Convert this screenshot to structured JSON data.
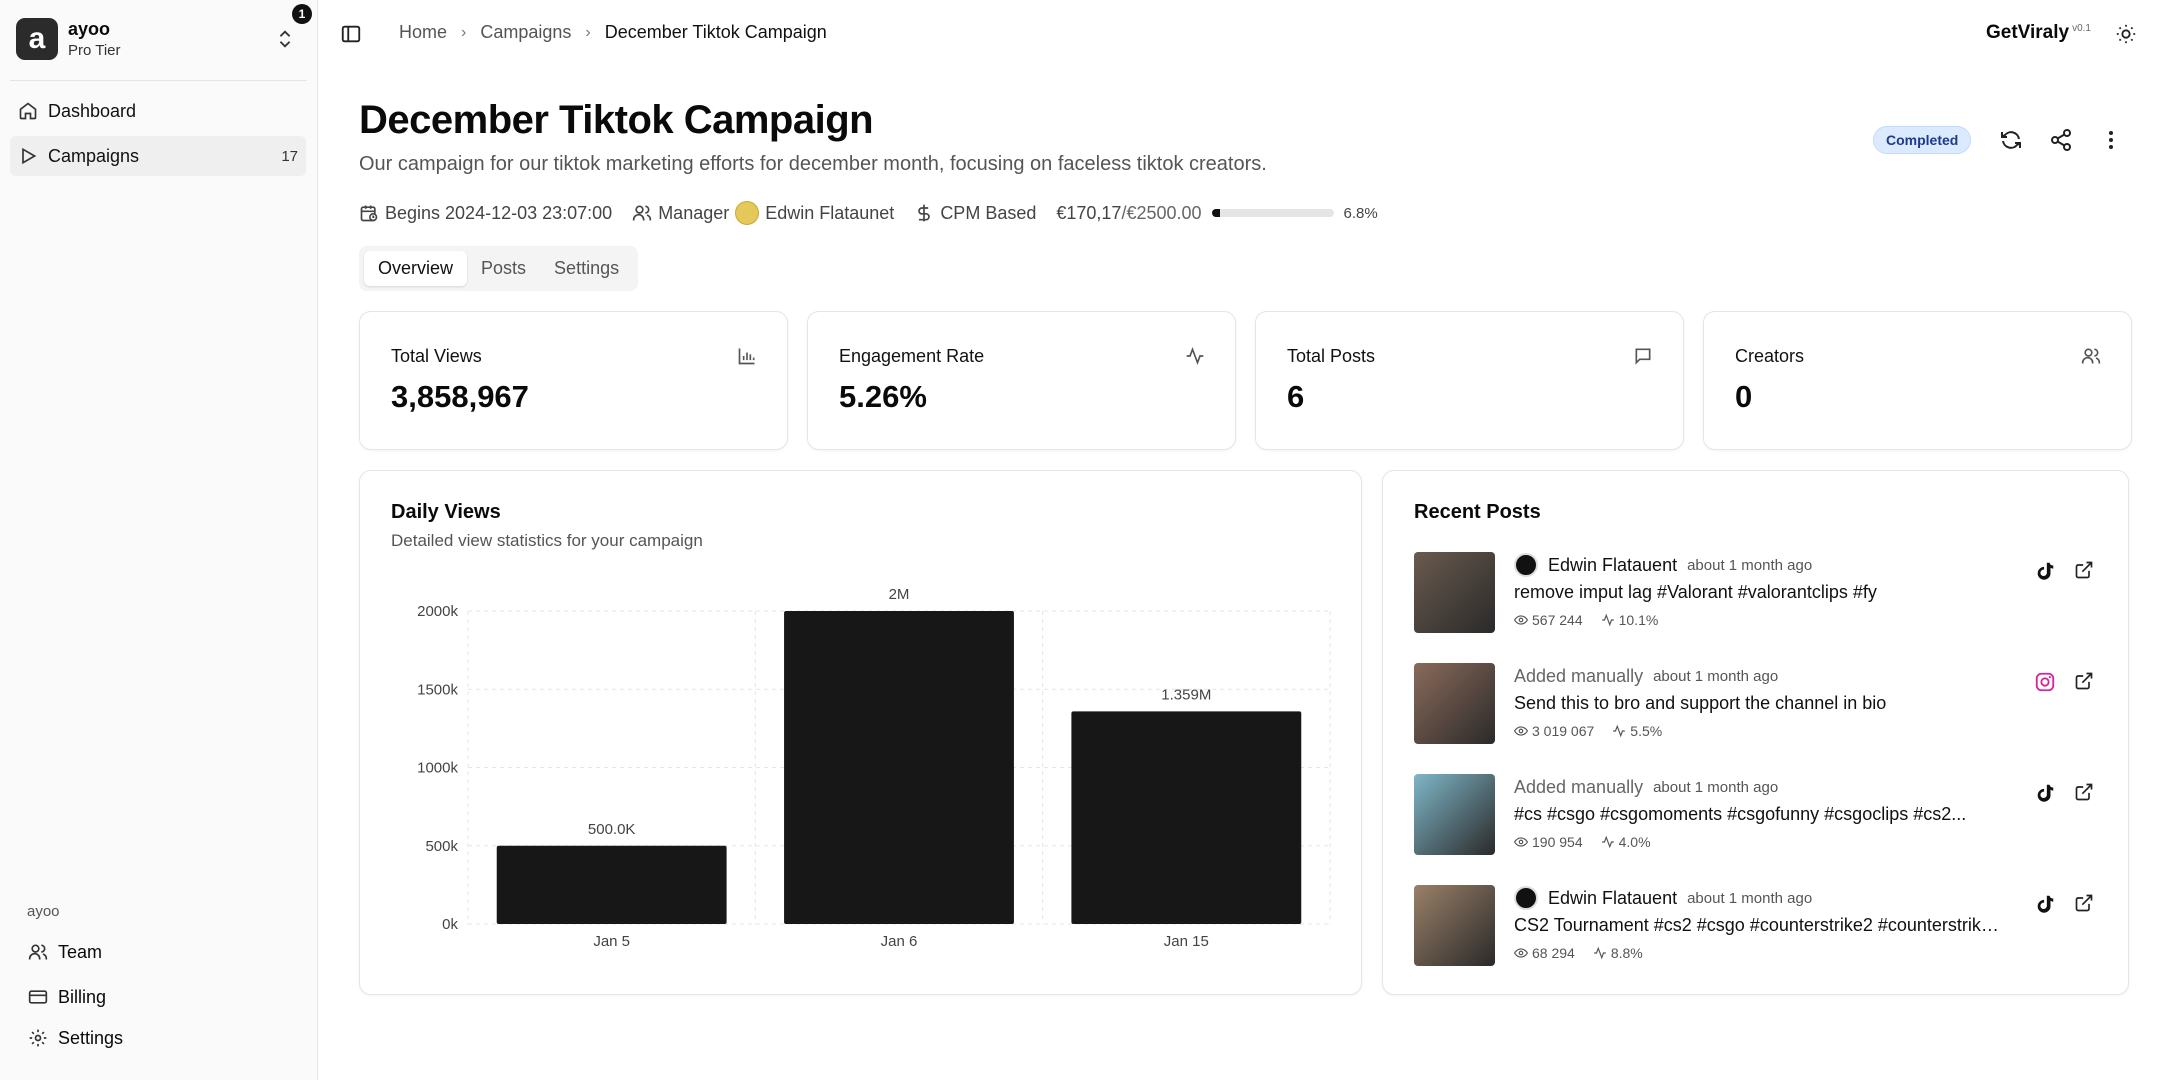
{
  "sidebar": {
    "org_initial": "a",
    "org_name": "ayoo",
    "org_tier": "Pro Tier",
    "notification_count": "1",
    "nav": [
      {
        "label": "Dashboard",
        "icon": "home-icon"
      },
      {
        "label": "Campaigns",
        "icon": "play-icon",
        "count": "17"
      }
    ],
    "group_label": "ayoo",
    "bottom": [
      {
        "label": "Team",
        "icon": "users-icon"
      },
      {
        "label": "Billing",
        "icon": "credit-card-icon"
      },
      {
        "label": "Settings",
        "icon": "gear-icon"
      }
    ]
  },
  "header": {
    "breadcrumbs": [
      "Home",
      "Campaigns",
      "December Tiktok Campaign"
    ],
    "brand": "GetViraly",
    "version": "v0.1"
  },
  "campaign": {
    "title": "December Tiktok Campaign",
    "description": "Our campaign for our tiktok marketing efforts for december month, focusing on faceless tiktok creators.",
    "status": "Completed",
    "begins": "Begins 2024-12-03 23:07:00",
    "manager_label": "Manager",
    "manager_name": "Edwin Flataunet",
    "pricing": "CPM Based",
    "spent": "€170,17",
    "budget": "/€2500.00",
    "budget_pct_label": "6.8%",
    "budget_fraction": 0.068
  },
  "tabs": [
    "Overview",
    "Posts",
    "Settings"
  ],
  "stats": [
    {
      "label": "Total Views",
      "value": "3,858,967",
      "icon": "bar-chart-icon"
    },
    {
      "label": "Engagement Rate",
      "value": "5.26%",
      "icon": "activity-icon"
    },
    {
      "label": "Total Posts",
      "value": "6",
      "icon": "message-square-icon"
    },
    {
      "label": "Creators",
      "value": "0",
      "icon": "users-icon"
    }
  ],
  "daily_views": {
    "title": "Daily Views",
    "subtitle": "Detailed view statistics for your campaign"
  },
  "chart_data": {
    "type": "bar",
    "categories": [
      "Jan 5",
      "Jan 6",
      "Jan 15"
    ],
    "values": [
      500000,
      2000000,
      1359000
    ],
    "data_labels": [
      "500.0K",
      "2M",
      "1.359M"
    ],
    "y_ticks": [
      "0k",
      "500k",
      "1000k",
      "1500k",
      "2000k"
    ],
    "ylim": [
      0,
      2000000
    ],
    "grid": true,
    "bar_color": "#171717"
  },
  "recent_posts": {
    "title": "Recent Posts",
    "items": [
      {
        "author": "Edwin Flatauent",
        "author_avatar": true,
        "time": "about 1 month ago",
        "text": "remove imput lag #Valorant #valorantclips #fy",
        "views": "567 244",
        "engagement": "10.1%",
        "platform": "tiktok-icon",
        "thumb": "#6a5a4e"
      },
      {
        "author": "Added manually",
        "author_avatar": false,
        "time": "about 1 month ago",
        "text": "Send this to bro and support the channel in bio",
        "views": "3 019 067",
        "engagement": "5.5%",
        "platform": "instagram-icon",
        "thumb": "#8a6a5a"
      },
      {
        "author": "Added manually",
        "author_avatar": false,
        "time": "about 1 month ago",
        "text": "#cs #csgo #csgomoments #csgofunny #csgoclips #cs2...",
        "views": "190 954",
        "engagement": "4.0%",
        "platform": "tiktok-icon",
        "thumb": "#7fb6c8"
      },
      {
        "author": "Edwin Flatauent",
        "author_avatar": true,
        "time": "about 1 month ago",
        "text": "CS2 Tournament #cs2 #csgo #counterstrike2 #counterstrike...",
        "views": "68 294",
        "engagement": "8.8%",
        "platform": "tiktok-icon",
        "thumb": "#9a8068"
      }
    ]
  }
}
